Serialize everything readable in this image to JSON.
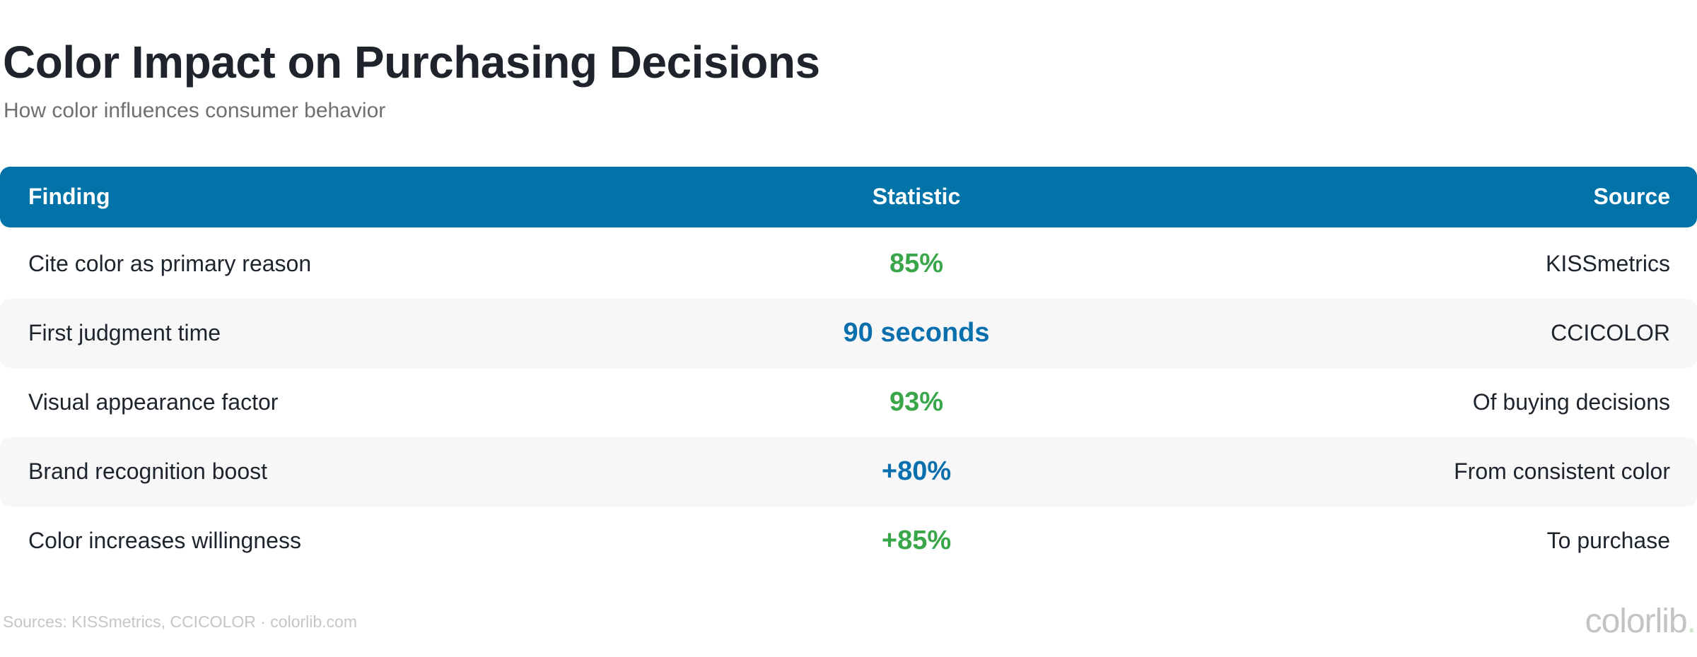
{
  "page": {
    "title": "Color Impact on Purchasing Decisions",
    "subtitle": "How color influences consumer behavior",
    "footer": {
      "sources": "Sources: KISSmetrics, CCICOLOR · colorlib.com",
      "logo_text": "colorlib",
      "logo_dot": "."
    }
  },
  "chart_data": {
    "type": "table",
    "title": "Color Impact on Purchasing Decisions",
    "subtitle": "How color influences consumer behavior",
    "columns": [
      "Finding",
      "Statistic",
      "Source"
    ],
    "rows": [
      [
        "Cite color as primary reason",
        "85%",
        "KISSmetrics"
      ],
      [
        "First judgment time",
        "90 seconds",
        "CCICOLOR"
      ],
      [
        "Visual appearance factor",
        "93%",
        "Of buying decisions"
      ],
      [
        "Brand recognition boost",
        "+80%",
        "From consistent color"
      ],
      [
        "Color increases willingness",
        "+85%",
        "To purchase"
      ]
    ],
    "stat_colors": [
      "green",
      "blue",
      "green",
      "blue",
      "green"
    ],
    "layout": {
      "header_alignments": [
        "left",
        "center",
        "right"
      ],
      "striped_rows": [
        2,
        4
      ]
    }
  },
  "colors": {
    "header_bg": "#0173a8",
    "header_text": "#ffffff",
    "stat_green": "#3aa64a",
    "stat_blue": "#0a6fad",
    "stripe_bg": "#f7f7f8",
    "title_text": "#1f242c",
    "subtitle_text": "#6f6f6f",
    "body_text": "#1e242c",
    "footer_text": "#c6c6c6",
    "logo_text": "#c3c3c3",
    "logo_dot": "#cbe7c6"
  }
}
